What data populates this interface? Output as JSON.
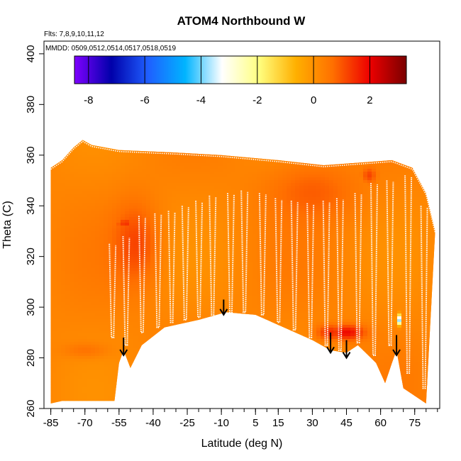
{
  "chart_data": {
    "type": "heatmap",
    "title": "ATOM4 Northbound W",
    "subtitle_flights": "Flts: 7,8,9,10,11,12",
    "subtitle_dates": "MMDD: 0509,0512,0514,0517,0518,0519",
    "xlabel": "Latitude (deg N)",
    "ylabel": "Theta (C)",
    "xlim": [
      -88,
      86
    ],
    "ylim": [
      260,
      405
    ],
    "x_ticks": [
      -85,
      -70,
      -55,
      -40,
      -25,
      -10,
      5,
      15,
      30,
      45,
      60,
      75
    ],
    "x_tick_labels": [
      "-85",
      "-70",
      "-55",
      "-40",
      "-25",
      "-10",
      "5",
      "15",
      "30",
      "45",
      "60",
      "75"
    ],
    "y_ticks": [
      260,
      280,
      300,
      320,
      340,
      360,
      380,
      400
    ],
    "y_tick_labels": [
      "260",
      "280",
      "300",
      "320",
      "340",
      "360",
      "380",
      "400"
    ],
    "colorbar": {
      "range": [
        -8.5,
        3.3
      ],
      "ticks": [
        -8,
        -6,
        -4,
        -2,
        0,
        2
      ],
      "tick_labels": [
        "-8",
        "-6",
        "-4",
        "-2",
        "0",
        "2"
      ],
      "colors": [
        "#7f00ff",
        "#0000aa",
        "#1f5fff",
        "#00b4ff",
        "#ffffff",
        "#ffff80",
        "#ffb000",
        "#ff7000",
        "#ee0000",
        "#7a0000"
      ]
    },
    "curtain": {
      "top": [
        [
          -85,
          355
        ],
        [
          -80,
          358
        ],
        [
          -75,
          363
        ],
        [
          -71,
          366
        ],
        [
          -67,
          364
        ],
        [
          -55,
          362
        ],
        [
          -30,
          361
        ],
        [
          -10,
          360
        ],
        [
          15,
          358
        ],
        [
          35,
          356
        ],
        [
          50,
          357
        ],
        [
          65,
          358
        ],
        [
          74,
          355
        ],
        [
          80,
          345
        ],
        [
          84,
          330
        ]
      ],
      "bottom": [
        [
          -85,
          262
        ],
        [
          -80,
          263
        ],
        [
          -70,
          263
        ],
        [
          -57,
          263
        ],
        [
          -55,
          278
        ],
        [
          -53,
          283
        ],
        [
          -50,
          276
        ],
        [
          -45,
          285
        ],
        [
          -35,
          292
        ],
        [
          -20,
          295
        ],
        [
          -8,
          298
        ],
        [
          5,
          297
        ],
        [
          15,
          293
        ],
        [
          30,
          287
        ],
        [
          38,
          283
        ],
        [
          45,
          282
        ],
        [
          50,
          285
        ],
        [
          58,
          278
        ],
        [
          62,
          270
        ],
        [
          65,
          278
        ],
        [
          67,
          283
        ],
        [
          70,
          268
        ],
        [
          75,
          265
        ],
        [
          80,
          262
        ]
      ]
    },
    "profiles": [
      {
        "x": -58,
        "top": 325,
        "bottom": 288
      },
      {
        "x": -52,
        "top": 328,
        "bottom": 285
      },
      {
        "x": -45,
        "top": 336,
        "bottom": 290
      },
      {
        "x": -38,
        "top": 337,
        "bottom": 292
      },
      {
        "x": -32,
        "top": 338,
        "bottom": 294
      },
      {
        "x": -26,
        "top": 340,
        "bottom": 295
      },
      {
        "x": -20,
        "top": 342,
        "bottom": 296
      },
      {
        "x": -14,
        "top": 344,
        "bottom": 297
      },
      {
        "x": -6,
        "top": 345,
        "bottom": 298
      },
      {
        "x": 0,
        "top": 346,
        "bottom": 298
      },
      {
        "x": 8,
        "top": 345,
        "bottom": 297
      },
      {
        "x": 15,
        "top": 343,
        "bottom": 294
      },
      {
        "x": 22,
        "top": 342,
        "bottom": 291
      },
      {
        "x": 29,
        "top": 341,
        "bottom": 288
      },
      {
        "x": 36,
        "top": 342,
        "bottom": 285
      },
      {
        "x": 42,
        "top": 343,
        "bottom": 283
      },
      {
        "x": 50,
        "top": 345,
        "bottom": 286
      },
      {
        "x": 57,
        "top": 349,
        "bottom": 281
      },
      {
        "x": 64,
        "top": 350,
        "bottom": 285
      },
      {
        "x": 72,
        "top": 352,
        "bottom": 274
      },
      {
        "x": 79,
        "top": 340,
        "bottom": 268
      }
    ],
    "arrows": [
      {
        "x": -53,
        "from": 288,
        "to": 281
      },
      {
        "x": -9,
        "from": 303,
        "to": 297
      },
      {
        "x": 38,
        "from": 290,
        "to": 282
      },
      {
        "x": 45,
        "from": 287,
        "to": 280
      },
      {
        "x": 67,
        "from": 289,
        "to": 281
      }
    ],
    "hotspots": [
      {
        "lat": -48,
        "theta": 325,
        "value": 1.2,
        "spread": [
          10,
          16
        ]
      },
      {
        "lat": -52,
        "theta": 333,
        "value": 1.4,
        "spread": [
          4,
          2
        ]
      },
      {
        "lat": 45,
        "theta": 290,
        "value": 1.9,
        "spread": [
          8,
          3
        ]
      },
      {
        "lat": 38,
        "theta": 290,
        "value": 1.5,
        "spread": [
          6,
          3
        ]
      },
      {
        "lat": 30,
        "theta": 345,
        "value": 0.9,
        "spread": [
          20,
          12
        ]
      },
      {
        "lat": 55,
        "theta": 352,
        "value": 1.2,
        "spread": [
          3,
          3
        ]
      },
      {
        "lat": -70,
        "theta": 283,
        "value": 0.6,
        "spread": [
          10,
          3
        ]
      },
      {
        "lat": 68,
        "theta": 295,
        "value": -4.0,
        "spread": [
          1,
          2
        ]
      }
    ]
  }
}
